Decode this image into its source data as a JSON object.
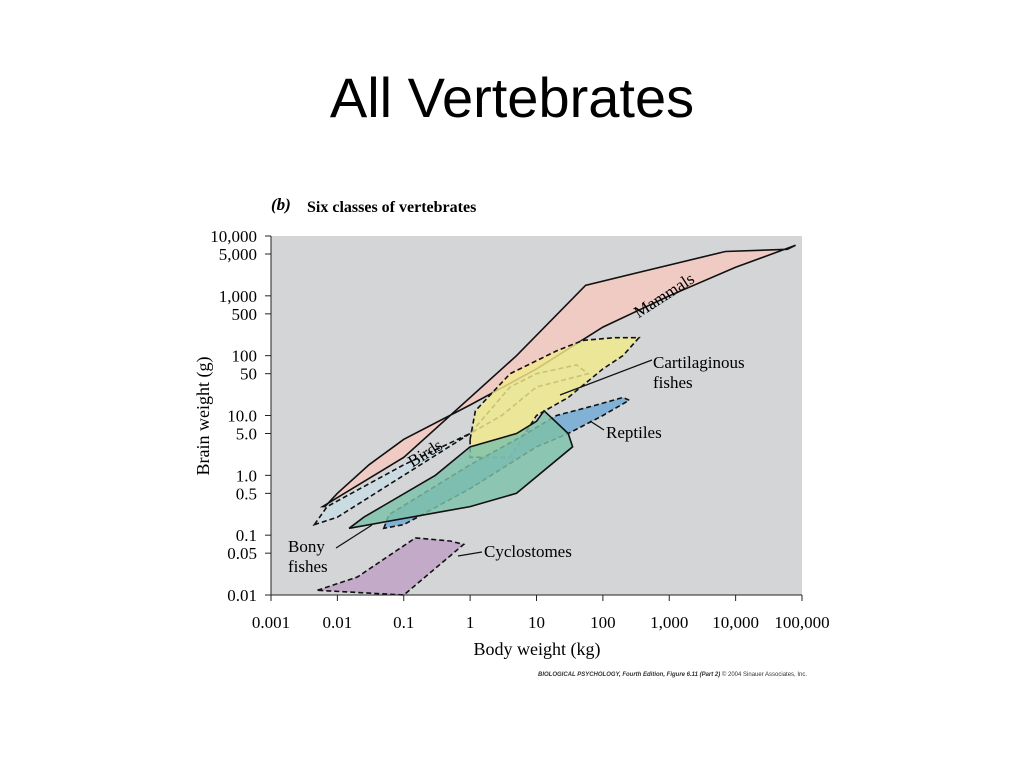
{
  "slide": {
    "title": "All Vertebrates"
  },
  "figure": {
    "panel_letter": "(b)",
    "panel_title": "Six classes of vertebrates",
    "credit_book": "BIOLOGICAL PSYCHOLOGY, Fourth Edition, Figure 6.11 (Part 2)",
    "credit_rest": "© 2004 Sinauer Associates, Inc."
  },
  "chart_data": {
    "type": "area",
    "title": "Six classes of vertebrates",
    "xlabel": "Body weight (kg)",
    "ylabel": "Brain weight (g)",
    "x_scale": "log",
    "y_scale": "log",
    "xlim": [
      0.001,
      100000
    ],
    "ylim": [
      0.01,
      10000
    ],
    "x_ticks": [
      0.001,
      0.01,
      0.1,
      1,
      10,
      100,
      1000,
      10000,
      100000
    ],
    "x_tick_labels": [
      "0.001",
      "0.01",
      "0.1",
      "1",
      "10",
      "100",
      "1,000",
      "10,000",
      "100,000"
    ],
    "y_ticks": [
      0.01,
      0.05,
      0.1,
      0.5,
      1,
      5,
      10,
      50,
      100,
      500,
      1000,
      5000,
      10000
    ],
    "y_tick_labels": [
      "0.01",
      "0.05",
      "0.1",
      "0.5",
      "1.0",
      "5.0",
      "10.0",
      "50",
      "100",
      "500",
      "1,000",
      "5,000",
      "10,000"
    ],
    "background": "#d4d5d7",
    "grid": false,
    "series": [
      {
        "name": "Mammals",
        "label": "Mammals",
        "color": "#f6c8c0",
        "outline": "solid",
        "points": [
          [
            0.0065,
            0.3
          ],
          [
            0.01,
            0.5
          ],
          [
            0.03,
            1.5
          ],
          [
            0.1,
            4
          ],
          [
            1,
            15
          ],
          [
            10,
            60
          ],
          [
            100,
            300
          ],
          [
            1000,
            1000
          ],
          [
            10000,
            3000
          ],
          [
            80000,
            7000
          ],
          [
            60000,
            6000
          ],
          [
            7000,
            5500
          ],
          [
            55,
            1500
          ],
          [
            5,
            100
          ],
          [
            0.1,
            2
          ],
          [
            0.006,
            0.3
          ]
        ]
      },
      {
        "name": "Birds",
        "label": "Birds",
        "color": "#c9dce4",
        "outline": "dashed",
        "points": [
          [
            0.0045,
            0.15
          ],
          [
            0.007,
            0.3
          ],
          [
            0.1,
            1.5
          ],
          [
            1,
            5
          ],
          [
            4,
            30
          ],
          [
            10,
            50
          ],
          [
            40,
            70
          ],
          [
            60,
            50
          ],
          [
            10,
            30
          ],
          [
            3,
            10
          ],
          [
            1,
            5
          ],
          [
            0.1,
            1
          ],
          [
            0.01,
            0.2
          ],
          [
            0.0045,
            0.15
          ]
        ]
      },
      {
        "name": "Cartilaginous fishes",
        "label": "Cartilaginous\nfishes",
        "color": "#f2e98a",
        "outline": "dashed",
        "points": [
          [
            1,
            4
          ],
          [
            1.2,
            12
          ],
          [
            4,
            50
          ],
          [
            20,
            120
          ],
          [
            50,
            180
          ],
          [
            150,
            200
          ],
          [
            350,
            200
          ],
          [
            200,
            100
          ],
          [
            100,
            60
          ],
          [
            30,
            20
          ],
          [
            10,
            10
          ],
          [
            4,
            2
          ],
          [
            1,
            2
          ],
          [
            1,
            4
          ]
        ]
      },
      {
        "name": "Reptiles",
        "label": "Reptiles",
        "color": "#6fa8d4",
        "outline": "dashed",
        "points": [
          [
            0.05,
            0.13
          ],
          [
            0.06,
            0.22
          ],
          [
            1,
            1.5
          ],
          [
            5,
            4
          ],
          [
            20,
            10
          ],
          [
            80,
            15
          ],
          [
            200,
            20
          ],
          [
            250,
            18
          ],
          [
            100,
            10
          ],
          [
            30,
            5
          ],
          [
            10,
            3
          ],
          [
            1,
            0.6
          ],
          [
            0.1,
            0.15
          ],
          [
            0.05,
            0.13
          ]
        ]
      },
      {
        "name": "Bony fishes",
        "label": "Bony\nfishes",
        "color": "#7cc1a8",
        "outline": "solid",
        "points": [
          [
            0.015,
            0.13
          ],
          [
            0.025,
            0.2
          ],
          [
            0.3,
            1
          ],
          [
            1,
            3
          ],
          [
            5,
            5
          ],
          [
            10,
            8
          ],
          [
            13,
            12
          ],
          [
            30,
            5
          ],
          [
            35,
            3
          ],
          [
            5,
            0.5
          ],
          [
            1,
            0.3
          ],
          [
            0.015,
            0.13
          ]
        ]
      },
      {
        "name": "Cyclostomes",
        "label": "Cyclostomes",
        "color": "#c0a0c5",
        "outline": "dashed",
        "points": [
          [
            0.005,
            0.012
          ],
          [
            0.02,
            0.02
          ],
          [
            0.15,
            0.09
          ],
          [
            0.5,
            0.08
          ],
          [
            0.8,
            0.07
          ],
          [
            0.1,
            0.01
          ],
          [
            0.005,
            0.012
          ]
        ]
      }
    ]
  }
}
